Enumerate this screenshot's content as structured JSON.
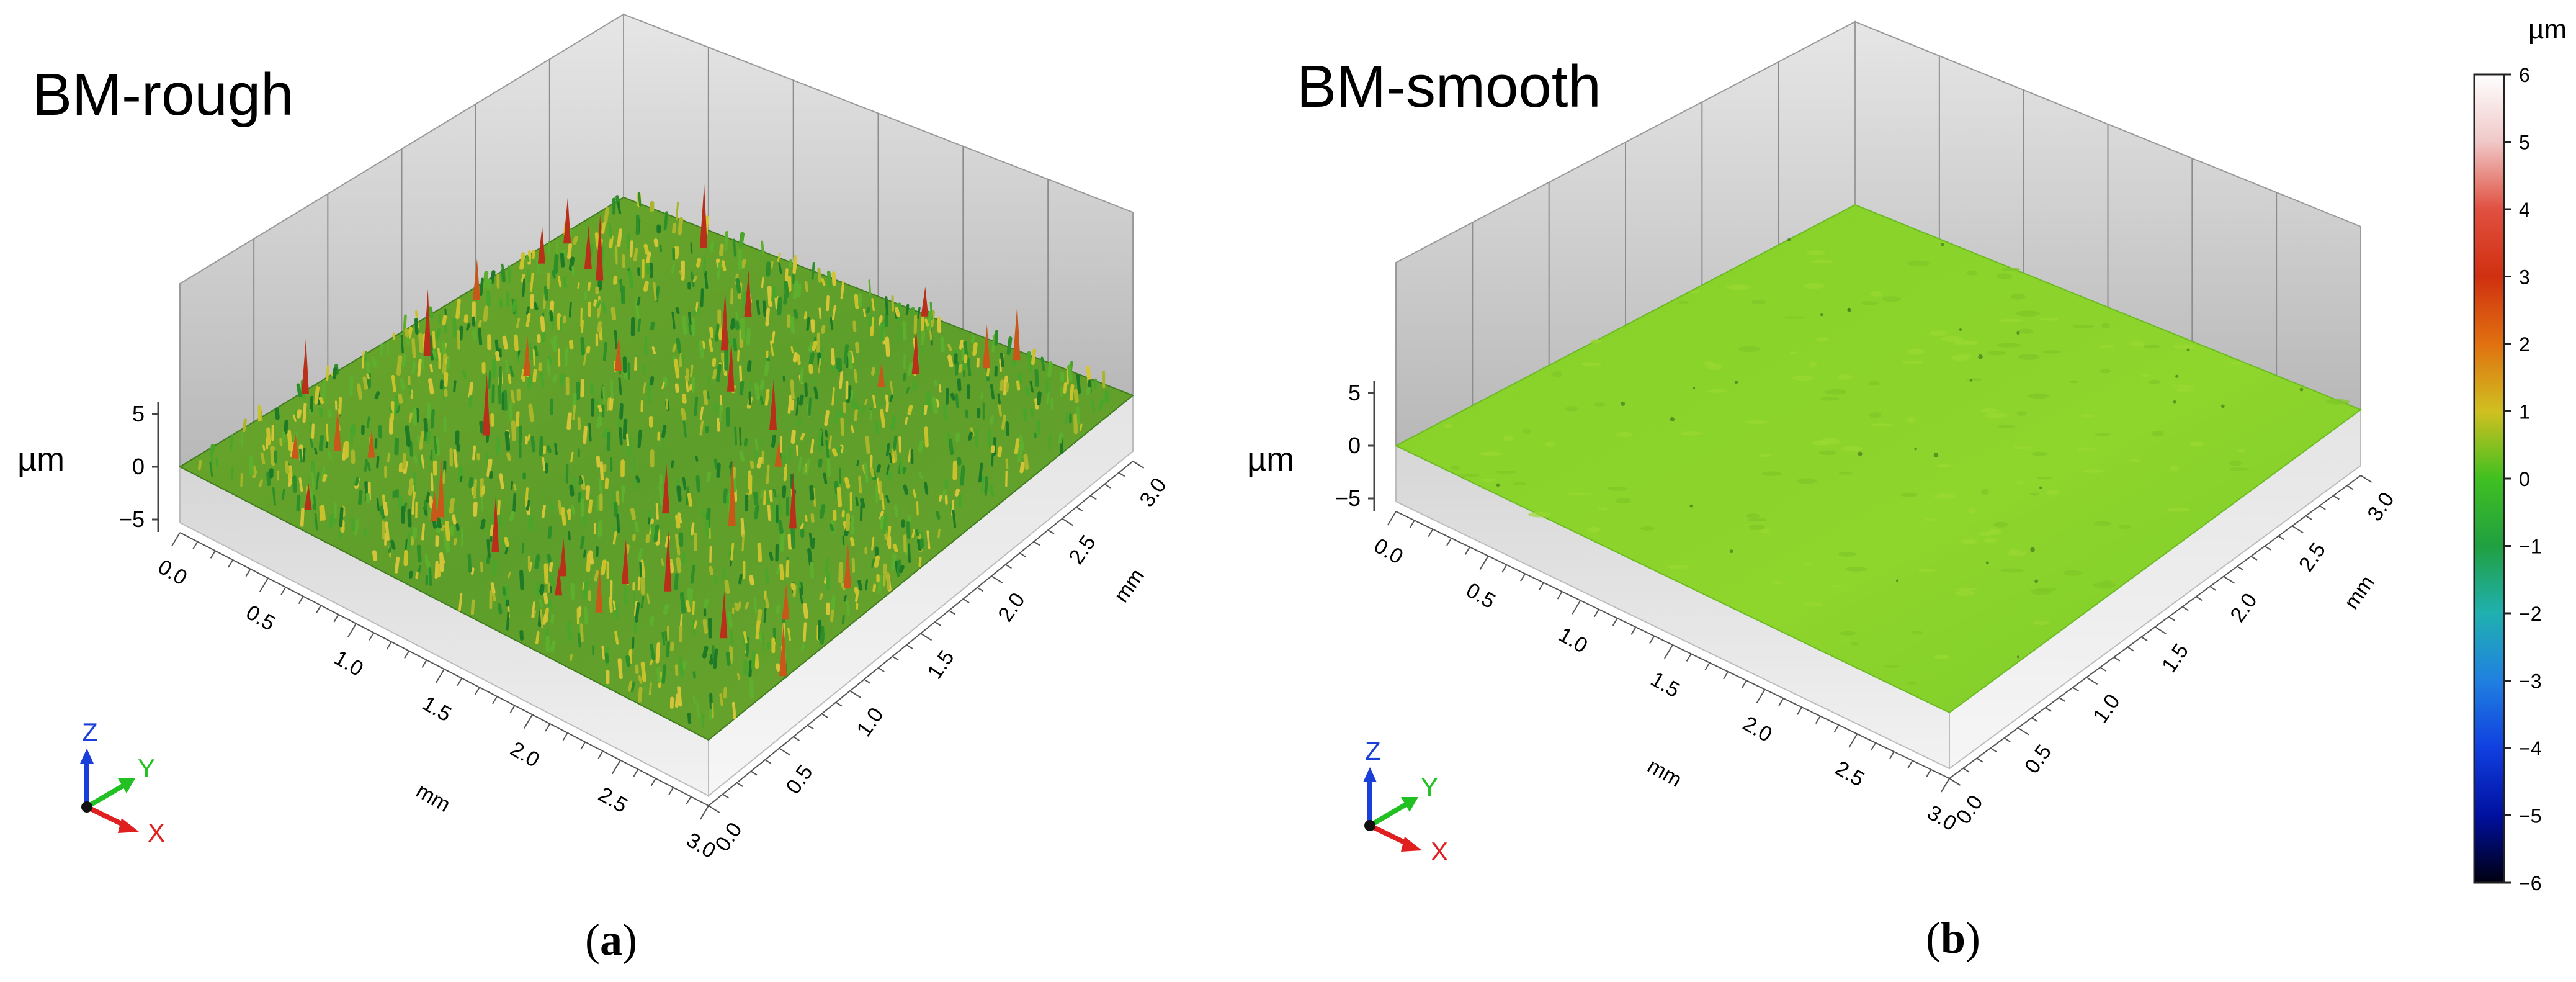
{
  "panels": [
    {
      "title": "BM-rough",
      "caption_letter": "a",
      "z_axis": {
        "label": "µm",
        "ticks": [
          "5",
          "0",
          "−5"
        ]
      },
      "x_axis": {
        "label": "mm",
        "ticks": [
          "0.0",
          "0.5",
          "1.0",
          "1.5",
          "2.0",
          "2.5",
          "3.0"
        ]
      },
      "y_axis": {
        "label": "mm",
        "ticks": [
          "0.0",
          "0.5",
          "1.0",
          "1.5",
          "2.0",
          "2.5",
          "3.0"
        ]
      },
      "triad": {
        "z": "Z",
        "y": "Y",
        "x": "X"
      },
      "surface": "rough"
    },
    {
      "title": "BM-smooth",
      "caption_letter": "b",
      "z_axis": {
        "label": "µm",
        "ticks": [
          "5",
          "0",
          "−5"
        ]
      },
      "x_axis": {
        "label": "mm",
        "ticks": [
          "0.0",
          "0.5",
          "1.0",
          "1.5",
          "2.0",
          "2.5",
          "3.0"
        ]
      },
      "y_axis": {
        "label": "mm",
        "ticks": [
          "0.0",
          "0.5",
          "1.0",
          "1.5",
          "2.0",
          "2.5",
          "3.0"
        ]
      },
      "triad": {
        "z": "Z",
        "y": "Y",
        "x": "X"
      },
      "surface": "smooth"
    }
  ],
  "colorbar": {
    "unit": "µm",
    "ticks": [
      "6",
      "5",
      "4",
      "3",
      "2",
      "1",
      "0",
      "−1",
      "−2",
      "−3",
      "−4",
      "−5",
      "−6"
    ],
    "stops": [
      "#ffffff",
      "#f0c8c8",
      "#e05040",
      "#d03010",
      "#e07010",
      "#d0c020",
      "#40c020",
      "#20a040",
      "#20b0b0",
      "#2080e0",
      "#1040e0",
      "#0010a0",
      "#000010"
    ]
  },
  "colors": {
    "triad_z": "#1a3fd8",
    "triad_y": "#22c022",
    "triad_x": "#e02020",
    "rough_base": "#6aa825",
    "smooth_base": "#8cd028"
  }
}
